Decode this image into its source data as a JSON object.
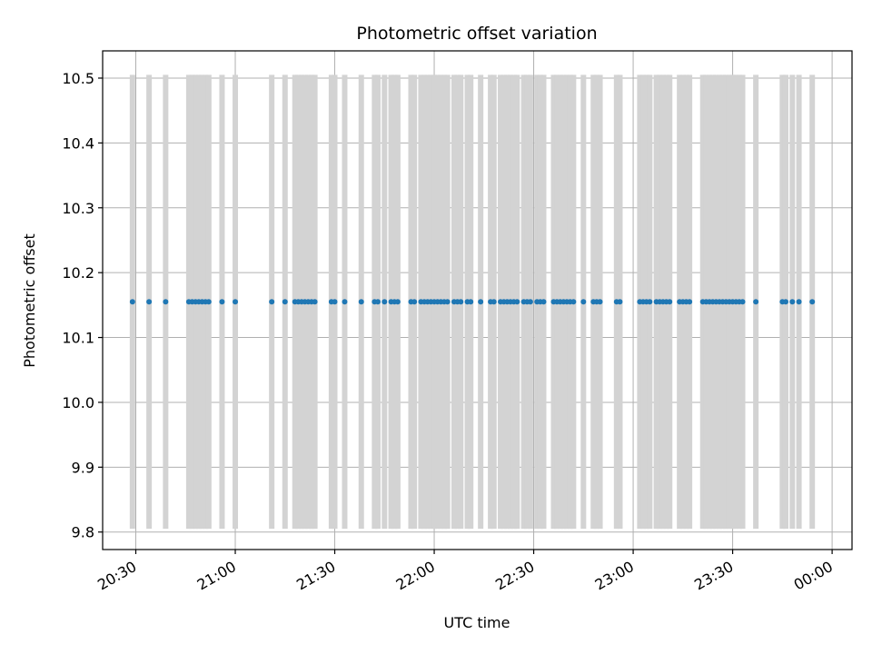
{
  "chart_data": {
    "type": "scatter",
    "title": "Photometric offset variation",
    "xlabel": "UTC time",
    "ylabel": "Photometric offset",
    "x_axis": {
      "type": "time",
      "range": [
        "20:20",
        "00:06"
      ],
      "ticks": [
        "20:30",
        "21:00",
        "21:30",
        "22:00",
        "22:30",
        "23:00",
        "23:30",
        "00:00"
      ]
    },
    "y_axis": {
      "range": [
        9.773,
        10.542
      ],
      "ticks": [
        "9.8",
        "9.9",
        "10.0",
        "10.1",
        "10.2",
        "10.3",
        "10.4",
        "10.5"
      ]
    },
    "grid": true,
    "colors": {
      "points": "#1f77b4",
      "error_bars": "#d3d3d3"
    },
    "series": [
      {
        "marker": "point",
        "value": 10.155,
        "error_bar": [
          9.805,
          10.505
        ],
        "x": [
          "20:29",
          "20:34",
          "20:39",
          "20:46",
          "20:47",
          "20:48",
          "20:49",
          "20:50",
          "20:51",
          "20:52",
          "20:56",
          "21:00",
          "21:11",
          "21:15",
          "21:18",
          "21:19",
          "21:20",
          "21:21",
          "21:22",
          "21:23",
          "21:24",
          "21:29",
          "21:30",
          "21:33",
          "21:38",
          "21:42",
          "21:43",
          "21:45",
          "21:47",
          "21:48",
          "21:49",
          "21:53",
          "21:54",
          "21:56",
          "21:57",
          "21:58",
          "21:59",
          "22:00",
          "22:01",
          "22:02",
          "22:03",
          "22:04",
          "22:06",
          "22:07",
          "22:08",
          "22:10",
          "22:11",
          "22:14",
          "22:17",
          "22:18",
          "22:20",
          "22:21",
          "22:22",
          "22:23",
          "22:24",
          "22:25",
          "22:27",
          "22:28",
          "22:29",
          "22:31",
          "22:32",
          "22:33",
          "22:36",
          "22:37",
          "22:38",
          "22:39",
          "22:40",
          "22:41",
          "22:42",
          "22:45",
          "22:48",
          "22:49",
          "22:50",
          "22:55",
          "22:56",
          "23:02",
          "23:03",
          "23:04",
          "23:05",
          "23:07",
          "23:08",
          "23:09",
          "23:10",
          "23:11",
          "23:14",
          "23:15",
          "23:16",
          "23:17",
          "23:21",
          "23:22",
          "23:23",
          "23:24",
          "23:25",
          "23:26",
          "23:27",
          "23:28",
          "23:29",
          "23:30",
          "23:31",
          "23:32",
          "23:33",
          "23:37",
          "23:45",
          "23:46",
          "23:48",
          "23:50",
          "23:54"
        ]
      }
    ]
  }
}
